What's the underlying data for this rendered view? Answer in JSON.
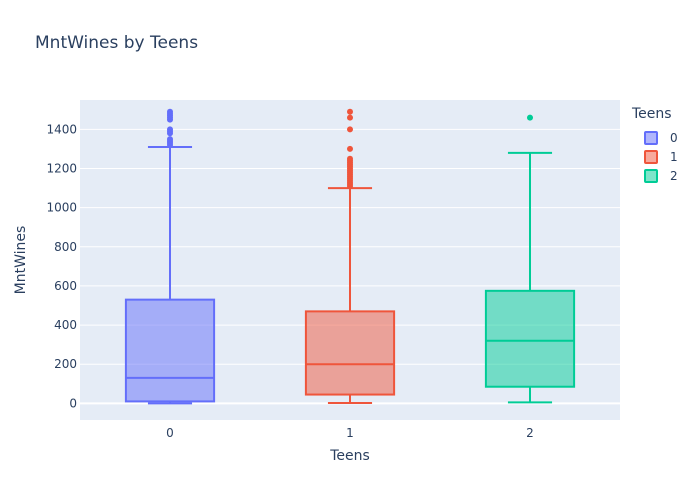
{
  "chart_data": {
    "type": "box",
    "title": "MntWines by Teens",
    "xlabel": "Teens",
    "ylabel": "MntWines",
    "categories": [
      "0",
      "1",
      "2"
    ],
    "ylim": [
      -85,
      1550
    ],
    "yticks": [
      0,
      200,
      400,
      600,
      800,
      1000,
      1200,
      1400
    ],
    "grid": true,
    "legend_title": "Teens",
    "legend_position": "top-right",
    "series": [
      {
        "name": "0",
        "color": "#636efa",
        "min": 0,
        "q1": 10,
        "median": 130,
        "q3": 530,
        "whisker_high": 1310,
        "outliers": [
          1320,
          1330,
          1340,
          1350,
          1380,
          1390,
          1400,
          1450,
          1460,
          1470,
          1480,
          1490
        ]
      },
      {
        "name": "1",
        "color": "#ef553b",
        "min": 2,
        "q1": 45,
        "median": 200,
        "q3": 470,
        "whisker_high": 1100,
        "outliers": [
          1110,
          1120,
          1130,
          1140,
          1150,
          1160,
          1170,
          1180,
          1190,
          1200,
          1210,
          1220,
          1230,
          1240,
          1250,
          1300,
          1400,
          1460,
          1490
        ]
      },
      {
        "name": "2",
        "color": "#00cc96",
        "min": 5,
        "q1": 85,
        "median": 320,
        "q3": 575,
        "whisker_high": 1280,
        "outliers": [
          1460
        ]
      }
    ]
  }
}
